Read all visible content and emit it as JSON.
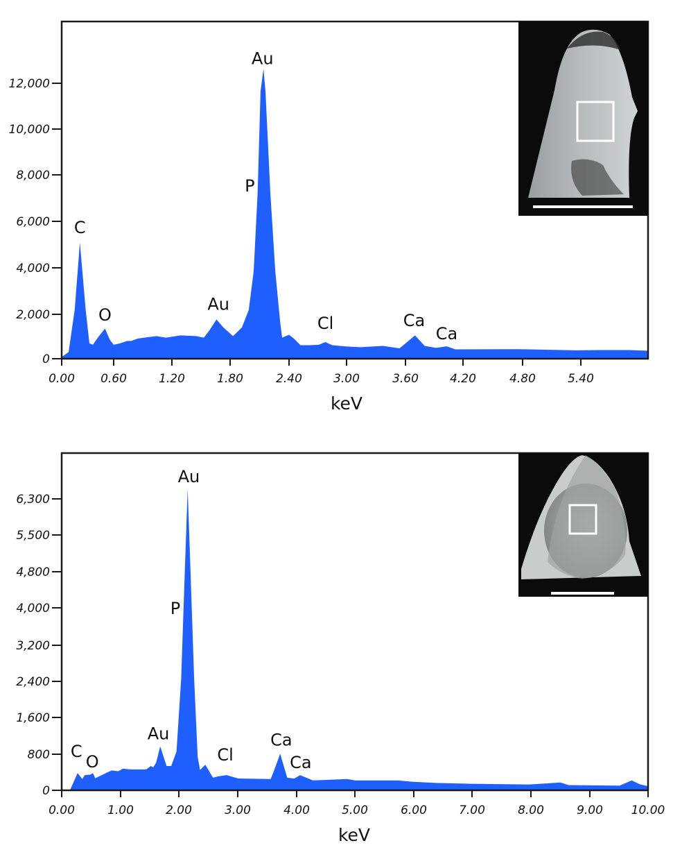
{
  "chart_data": [
    {
      "type": "area",
      "xlabel": "keV",
      "ylabel": "",
      "xticks": [
        "0.00",
        "0.60",
        "1.20",
        "1.80",
        "2.40",
        "3.00",
        "3.60",
        "4.20",
        "4.80",
        "5.40"
      ],
      "yticks": [
        "0",
        "2,000",
        "4,000",
        "6,000",
        "8,000",
        "10,000",
        "12,000"
      ],
      "xlim": [
        0,
        6.1
      ],
      "ylim": [
        0,
        14500
      ],
      "grid": false,
      "fill_color": "#1f5fff",
      "x": [
        0,
        0.08,
        0.15,
        0.21,
        0.277,
        0.32,
        0.36,
        0.42,
        0.5,
        0.555,
        0.6,
        0.665,
        0.74,
        0.78,
        0.85,
        0.95,
        1.04,
        1.14,
        1.29,
        1.45,
        1.53,
        1.59,
        1.66,
        1.73,
        1.83,
        1.92,
        1.99,
        2.04,
        2.08,
        2.11,
        2.14,
        2.16,
        2.21,
        2.26,
        2.31,
        2.33,
        2.4,
        2.45,
        2.52,
        2.61,
        2.71,
        2.78,
        2.85,
        3.0,
        3.14,
        3.37,
        3.54,
        3.7,
        3.8,
        3.92,
        4.03,
        4.12,
        4.75,
        5.35,
        5.59,
        5.9,
        6.1
      ],
      "y": [
        80,
        300,
        2190,
        5090,
        2190,
        690,
        630,
        970,
        1360,
        860,
        630,
        690,
        800,
        800,
        910,
        970,
        1020,
        950,
        1050,
        1020,
        950,
        1300,
        1770,
        1410,
        1020,
        1410,
        2190,
        3860,
        7200,
        11650,
        12630,
        11650,
        7200,
        3860,
        1640,
        950,
        1080,
        910,
        610,
        610,
        630,
        750,
        610,
        550,
        520,
        580,
        470,
        1050,
        580,
        490,
        560,
        420,
        430,
        380,
        390,
        390,
        360
      ],
      "annotations": [
        {
          "text": "C",
          "x": 0.21,
          "y": 5760
        },
        {
          "text": "O",
          "x": 0.5,
          "y": 2000
        },
        {
          "text": "Au",
          "x": 1.68,
          "y": 2470
        },
        {
          "text": "P",
          "x": 2.0,
          "y": 7550
        },
        {
          "text": "Au",
          "x": 2.13,
          "y": 13100
        },
        {
          "text": "Cl",
          "x": 2.78,
          "y": 1630
        },
        {
          "text": "Ca",
          "x": 3.69,
          "y": 1750
        },
        {
          "text": "Ca",
          "x": 4.03,
          "y": 1150
        }
      ],
      "inset": "SEM micrograph of specimen tip with white square marking analysed area and white scale bar"
    },
    {
      "type": "area",
      "xlabel": "keV",
      "ylabel": "",
      "xticks": [
        "0.00",
        "1.00",
        "2.00",
        "3.00",
        "4.00",
        "5.00",
        "6.00",
        "7.00",
        "8.00",
        "9.00",
        "10.00"
      ],
      "yticks": [
        "0",
        "800",
        "1,600",
        "2,400",
        "3,200",
        "4,000",
        "4,800",
        "5,500",
        "6,300"
      ],
      "xlim": [
        0,
        10
      ],
      "ylim": [
        0,
        7300
      ],
      "grid": false,
      "fill_color": "#1f5fff",
      "x": [
        0.14,
        0.27,
        0.35,
        0.39,
        0.49,
        0.53,
        0.57,
        0.77,
        0.85,
        0.96,
        1.04,
        1.16,
        1.44,
        1.52,
        1.56,
        1.61,
        1.68,
        1.79,
        1.87,
        1.96,
        2.04,
        2.1,
        2.15,
        2.2,
        2.26,
        2.32,
        2.36,
        2.45,
        2.58,
        2.66,
        2.81,
        3.01,
        3.56,
        3.62,
        3.72,
        3.84,
        3.96,
        4.06,
        4.28,
        4.87,
        5.0,
        5.73,
        5.97,
        6.41,
        7.0,
        7.97,
        8.5,
        8.64,
        9.51,
        9.72,
        9.86,
        10.0
      ],
      "y": [
        0,
        383,
        250,
        336,
        348,
        383,
        267,
        394,
        440,
        423,
        481,
        464,
        464,
        539,
        510,
        614,
        971,
        539,
        539,
        858,
        2463,
        4748,
        6520,
        4748,
        2463,
        743,
        452,
        568,
        278,
        307,
        336,
        261,
        250,
        452,
        811,
        278,
        261,
        336,
        220,
        250,
        220,
        220,
        190,
        162,
        145,
        128,
        174,
        116,
        104,
        220,
        133,
        93
      ],
      "annotations": [
        {
          "text": "C",
          "x": 0.25,
          "y": 877
        },
        {
          "text": "O",
          "x": 0.52,
          "y": 646
        },
        {
          "text": "Au",
          "x": 1.65,
          "y": 1260
        },
        {
          "text": "P",
          "x": 1.94,
          "y": 4000
        },
        {
          "text": "Au",
          "x": 2.17,
          "y": 6810
        },
        {
          "text": "Cl",
          "x": 2.79,
          "y": 800
        },
        {
          "text": "Ca",
          "x": 3.74,
          "y": 1123
        },
        {
          "text": "Ca",
          "x": 4.07,
          "y": 630
        }
      ],
      "inset": "SEM micrograph of rounded pitted specimen surface with white square marking analysed area and white scale bar"
    }
  ]
}
